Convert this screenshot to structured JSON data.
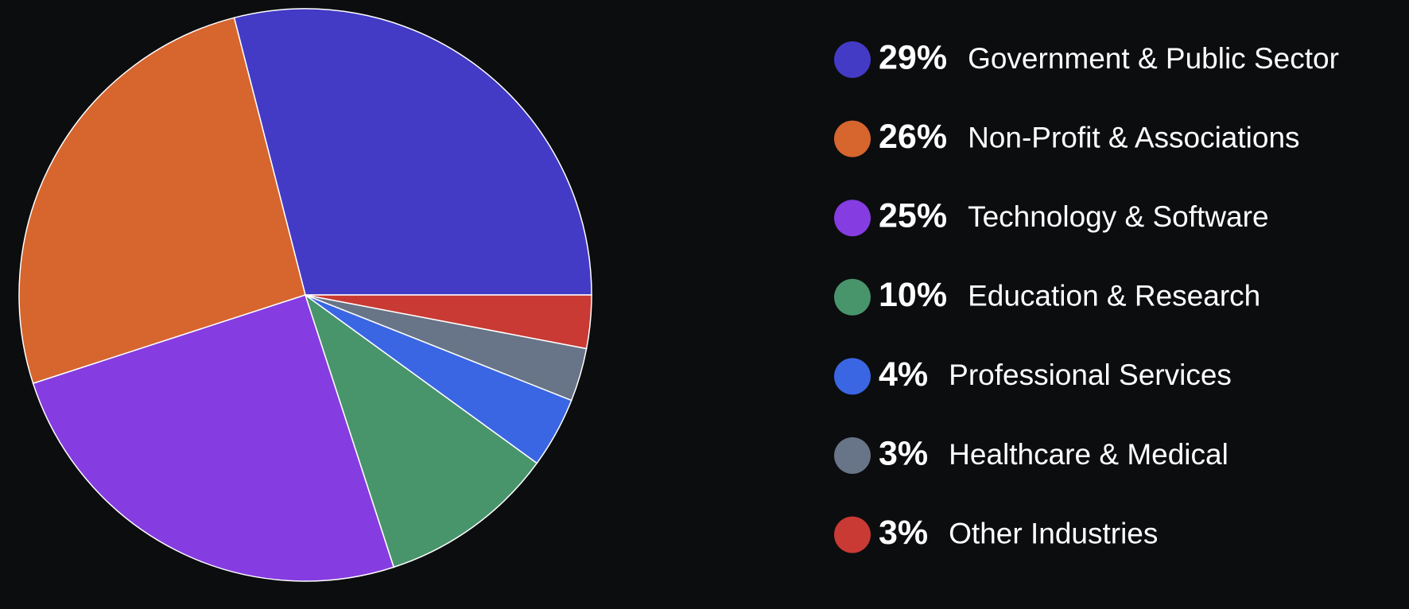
{
  "chart_data": {
    "type": "pie",
    "categories": [
      "Government & Public Sector",
      "Non-Profit & Associations",
      "Technology & Software",
      "Education & Research",
      "Professional Services",
      "Healthcare & Medical",
      "Other Industries"
    ],
    "values": [
      29,
      26,
      25,
      10,
      4,
      3,
      3
    ],
    "value_labels": [
      "29%",
      "26%",
      "25%",
      "10%",
      "4%",
      "3%",
      "3%"
    ],
    "colors": [
      "#433bc6",
      "#d6652e",
      "#853ce0",
      "#48956c",
      "#3a66e3",
      "#687487",
      "#c83a33"
    ]
  }
}
